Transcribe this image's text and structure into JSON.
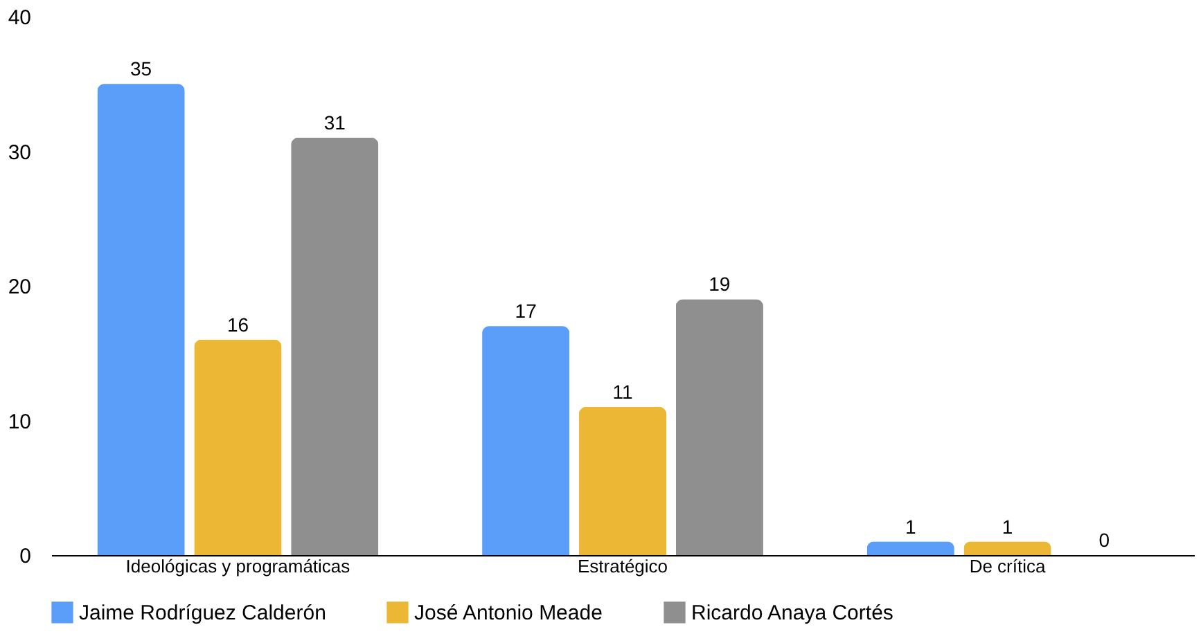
{
  "chart_data": {
    "type": "bar",
    "categories": [
      "Ideológicas y programáticas",
      "Estratégico",
      "De crítica"
    ],
    "series": [
      {
        "name": "Jaime Rodríguez Calderón",
        "color": "#5b9ef9",
        "values": [
          35,
          17,
          1
        ]
      },
      {
        "name": "José Antonio Meade",
        "color": "#ebb735",
        "values": [
          16,
          11,
          1
        ]
      },
      {
        "name": "Ricardo Anaya Cortés",
        "color": "#8f8f8f",
        "values": [
          31,
          19,
          0
        ]
      }
    ],
    "ylim": [
      0,
      40
    ],
    "yticks": [
      0,
      10,
      20,
      30,
      40
    ],
    "data_labels": true,
    "legend": "bottom",
    "grid": false
  }
}
